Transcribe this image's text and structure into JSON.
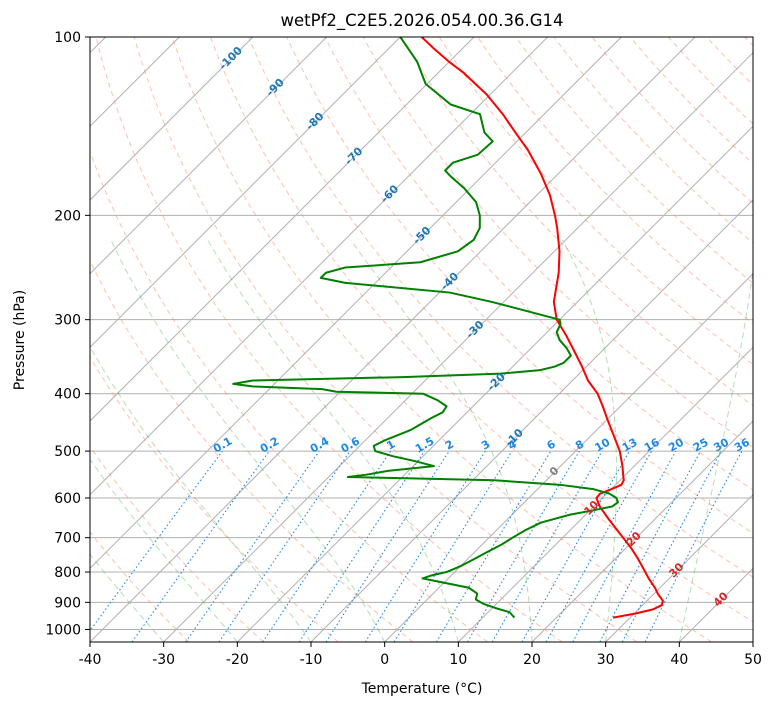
{
  "chart_data": {
    "type": "line",
    "title": "wetPf2_C2E5.2026.054.00.36.G14",
    "xlabel": "Temperature (°C)",
    "ylabel": "Pressure (hPa)",
    "xlim": [
      -40,
      50
    ],
    "ylim": [
      1050,
      100
    ],
    "y_scale": "log",
    "skew_degrees": 45,
    "grid": true,
    "x_ticks": [
      -40,
      -30,
      -20,
      -10,
      0,
      10,
      20,
      30,
      40,
      50
    ],
    "y_ticks": [
      100,
      200,
      300,
      400,
      500,
      600,
      700,
      800,
      900,
      1000
    ],
    "series": [
      {
        "role": "temperature",
        "color": "#ff0000",
        "points": [
          [
            955,
            27.7
          ],
          [
            940,
            30.2
          ],
          [
            925,
            32.0
          ],
          [
            910,
            32.6
          ],
          [
            895,
            32.2
          ],
          [
            870,
            30.5
          ],
          [
            850,
            29.3
          ],
          [
            820,
            27.2
          ],
          [
            790,
            25.2
          ],
          [
            760,
            23.1
          ],
          [
            730,
            20.8
          ],
          [
            700,
            18.2
          ],
          [
            680,
            16.4
          ],
          [
            650,
            13.6
          ],
          [
            620,
            10.8
          ],
          [
            600,
            9.2
          ],
          [
            590,
            9.1
          ],
          [
            580,
            10.0
          ],
          [
            570,
            10.8
          ],
          [
            560,
            10.5
          ],
          [
            550,
            9.8
          ],
          [
            530,
            8.4
          ],
          [
            500,
            6.0
          ],
          [
            470,
            3.0
          ],
          [
            440,
            -0.2
          ],
          [
            420,
            -2.4
          ],
          [
            400,
            -4.8
          ],
          [
            380,
            -7.9
          ],
          [
            360,
            -10.6
          ],
          [
            340,
            -13.6
          ],
          [
            320,
            -16.8
          ],
          [
            300,
            -20.4
          ],
          [
            280,
            -23.2
          ],
          [
            250,
            -26.5
          ],
          [
            230,
            -29.3
          ],
          [
            210,
            -32.8
          ],
          [
            200,
            -34.8
          ],
          [
            185,
            -38.2
          ],
          [
            170,
            -42.4
          ],
          [
            155,
            -47.4
          ],
          [
            145,
            -51.4
          ],
          [
            135,
            -55.6
          ],
          [
            125,
            -60.5
          ],
          [
            115,
            -66.5
          ],
          [
            110,
            -70.1
          ],
          [
            105,
            -73.6
          ],
          [
            100,
            -77.1
          ]
        ]
      },
      {
        "role": "dewpoint",
        "color": "#008000",
        "points": [
          [
            955,
            14.3
          ],
          [
            945,
            13.6
          ],
          [
            935,
            12.9
          ],
          [
            920,
            10.4
          ],
          [
            905,
            8.2
          ],
          [
            890,
            6.6
          ],
          [
            870,
            6.0
          ],
          [
            850,
            4.0
          ],
          [
            830,
            -1.0
          ],
          [
            820,
            -3.5
          ],
          [
            810,
            -2.6
          ],
          [
            800,
            -1.1
          ],
          [
            780,
            0.1
          ],
          [
            760,
            0.9
          ],
          [
            740,
            1.7
          ],
          [
            720,
            2.6
          ],
          [
            700,
            3.2
          ],
          [
            680,
            3.9
          ],
          [
            660,
            5.0
          ],
          [
            640,
            7.9
          ],
          [
            630,
            10.3
          ],
          [
            620,
            12.5
          ],
          [
            610,
            12.7
          ],
          [
            600,
            11.9
          ],
          [
            590,
            10.4
          ],
          [
            580,
            7.7
          ],
          [
            570,
            2.5
          ],
          [
            560,
            -7.1
          ],
          [
            556,
            -18.5
          ],
          [
            553,
            -27.4
          ],
          [
            548,
            -25.2
          ],
          [
            540,
            -22.8
          ],
          [
            530,
            -17.2
          ],
          [
            520,
            -20.4
          ],
          [
            510,
            -24.1
          ],
          [
            500,
            -27.2
          ],
          [
            490,
            -28.1
          ],
          [
            480,
            -27.4
          ],
          [
            460,
            -25.2
          ],
          [
            440,
            -24.1
          ],
          [
            430,
            -23.3
          ],
          [
            420,
            -23.6
          ],
          [
            410,
            -25.7
          ],
          [
            400,
            -28.5
          ],
          [
            397,
            -40.5
          ],
          [
            393,
            -42.8
          ],
          [
            389,
            -52.5
          ],
          [
            385,
            -55.6
          ],
          [
            380,
            -53.4
          ],
          [
            375,
            -33.5
          ],
          [
            370,
            -20.7
          ],
          [
            365,
            -15.8
          ],
          [
            360,
            -14.3
          ],
          [
            355,
            -13.6
          ],
          [
            345,
            -13.6
          ],
          [
            335,
            -15.2
          ],
          [
            325,
            -17.2
          ],
          [
            315,
            -18.7
          ],
          [
            305,
            -19.3
          ],
          [
            300,
            -20.0
          ],
          [
            290,
            -25.7
          ],
          [
            280,
            -31.6
          ],
          [
            270,
            -38.6
          ],
          [
            260,
            -54.1
          ],
          [
            255,
            -58.1
          ],
          [
            250,
            -58.1
          ],
          [
            245,
            -56.2
          ],
          [
            240,
            -46.7
          ],
          [
            230,
            -43.1
          ],
          [
            220,
            -42.5
          ],
          [
            210,
            -43.3
          ],
          [
            200,
            -45.0
          ],
          [
            190,
            -47.3
          ],
          [
            180,
            -50.8
          ],
          [
            172,
            -54.2
          ],
          [
            168,
            -55.8
          ],
          [
            163,
            -55.8
          ],
          [
            158,
            -53.5
          ],
          [
            150,
            -53.3
          ],
          [
            145,
            -55.6
          ],
          [
            135,
            -58.7
          ],
          [
            130,
            -64.0
          ],
          [
            120,
            -70.2
          ],
          [
            110,
            -74.4
          ],
          [
            100,
            -80.0
          ]
        ]
      }
    ],
    "dry_adiabats": {
      "color": "#ff8c69",
      "style": "dashed",
      "theta_c": [
        -30,
        -20,
        -10,
        0,
        10,
        20,
        30,
        40,
        50,
        60,
        70,
        80,
        90,
        100,
        110,
        120,
        130,
        140,
        150,
        160,
        170,
        180,
        190,
        200
      ]
    },
    "moist_adiabats": {
      "color": "#2ca02c",
      "style": "dashed",
      "start_t_c": [
        -30,
        -20,
        -10,
        0,
        10,
        20,
        30,
        40
      ]
    },
    "mixing_ratio_lines": {
      "color": "#1e88e5",
      "style": "dotted",
      "labels": [
        "0.1",
        "0.2",
        "0.4",
        "0.6",
        "1",
        "1.5",
        "2",
        "3",
        "4",
        "6",
        "8",
        "10",
        "13",
        "16",
        "20",
        "25",
        "30",
        "36"
      ],
      "values": [
        0.1,
        0.2,
        0.4,
        0.6,
        1,
        1.5,
        2,
        3,
        4,
        6,
        8,
        10,
        13,
        16,
        20,
        25,
        30,
        36
      ]
    },
    "isotherm_labels_cold": {
      "color": "#1f77b4",
      "labels": [
        "-100",
        "-90",
        "-80",
        "-70",
        "-60",
        "-50",
        "-40",
        "-30",
        "-20",
        "-10"
      ],
      "values": [
        -100,
        -90,
        -80,
        -70,
        -60,
        -50,
        -40,
        -30,
        -20,
        -10
      ]
    },
    "isotherm_label_zero": {
      "color": "#808080",
      "label": "0",
      "value": 0
    },
    "isotherm_labels_warm": {
      "color": "#d62728",
      "labels": [
        "10",
        "20",
        "30",
        "40"
      ],
      "values": [
        10,
        20,
        30,
        40
      ]
    }
  }
}
